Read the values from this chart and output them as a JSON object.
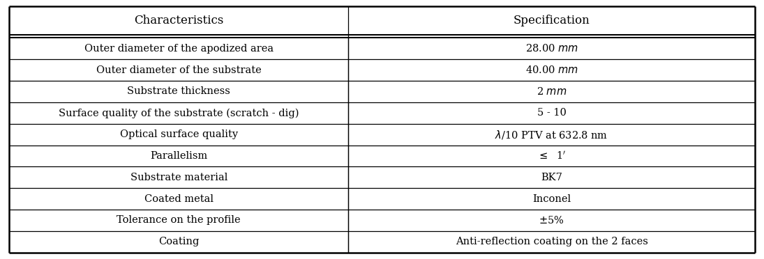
{
  "headers": [
    "Characteristics",
    "Specification"
  ],
  "rows": [
    [
      "Outer diameter of the apodized area",
      "28.00 $mm$"
    ],
    [
      "Outer diameter of the substrate",
      "40.00 $mm$"
    ],
    [
      "Substrate thickness",
      "2 $mm$"
    ],
    [
      "Surface quality of the substrate (scratch - dig)",
      "5 - 10"
    ],
    [
      "Optical surface quality",
      "$\\lambda$/10 PTV at 632.8 nm"
    ],
    [
      "Parallelism",
      "$\\leq$  1$'$"
    ],
    [
      "Substrate material",
      "BK7"
    ],
    [
      "Coated metal",
      "Inconel"
    ],
    [
      "Tolerance on the profile",
      "$\\pm$5%"
    ],
    [
      "Coating",
      "Anti-reflection coating on the 2 faces"
    ]
  ],
  "col_split": 0.455,
  "header_bg": "#ffffff",
  "text_color": "#000000",
  "border_color": "#000000",
  "header_fontsize": 12,
  "row_fontsize": 10.5,
  "figsize": [
    10.95,
    3.72
  ],
  "dpi": 100
}
